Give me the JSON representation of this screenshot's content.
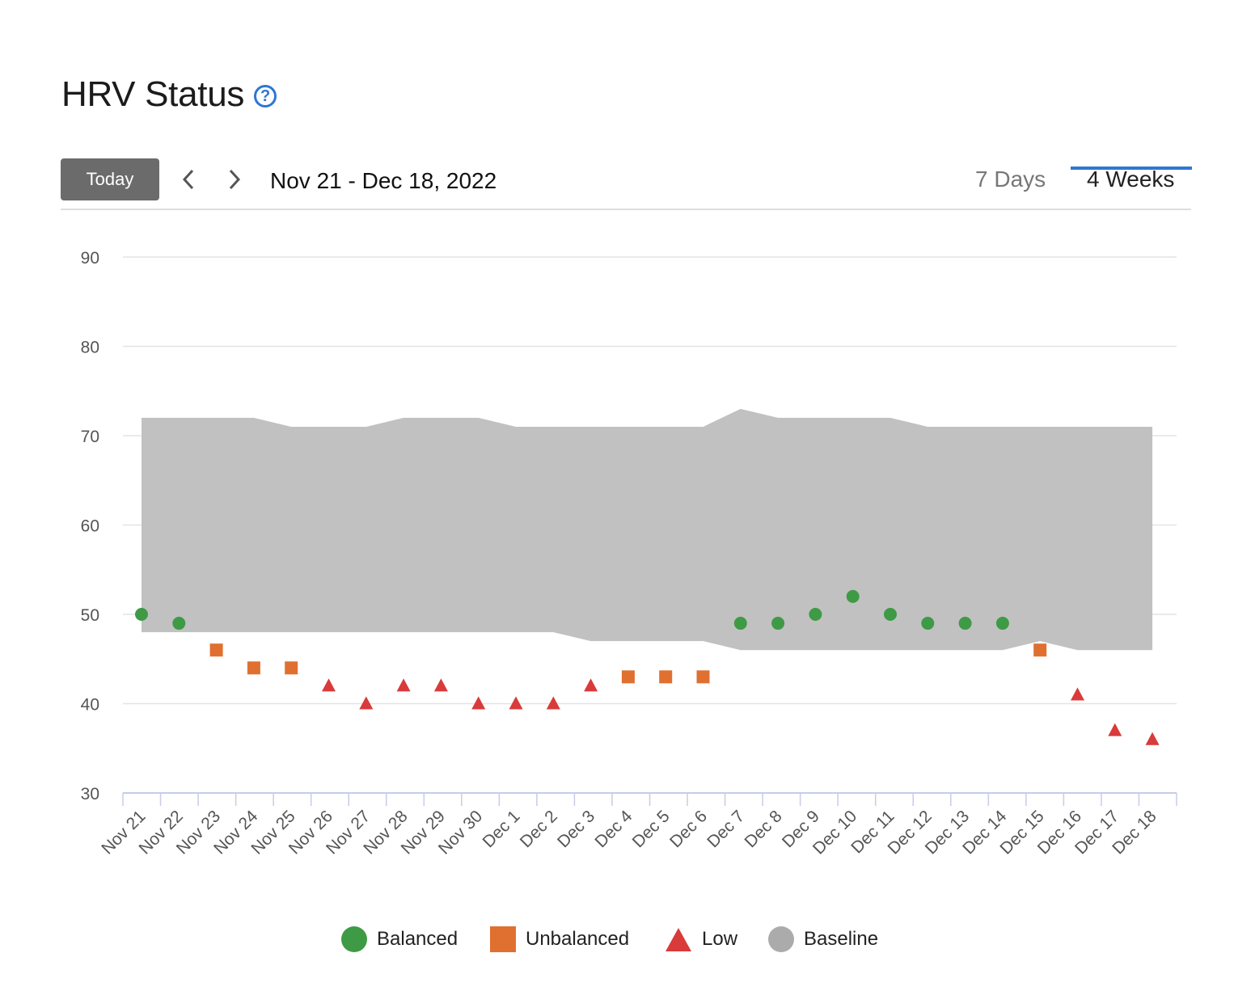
{
  "header": {
    "title": "HRV Status",
    "help_icon": "question-circle-icon"
  },
  "toolbar": {
    "today_label": "Today",
    "prev_icon": "chevron-left-icon",
    "next_icon": "chevron-right-icon",
    "date_range": "Nov 21 - Dec 18, 2022",
    "tabs": [
      {
        "label": "7 Days",
        "active": false
      },
      {
        "label": "4 Weeks",
        "active": true
      }
    ]
  },
  "colors": {
    "balanced": "#3f9a46",
    "unbalanced": "#e07030",
    "low": "#d93a3a",
    "baseline": "#c1c1c1",
    "baseline_legend": "#ababab",
    "accent": "#2f76d2",
    "gridline": "#e4e4e4",
    "axis": "#c5cde8"
  },
  "chart_data": {
    "type": "scatter",
    "categories": [
      "Nov 21",
      "Nov 22",
      "Nov 23",
      "Nov 24",
      "Nov 25",
      "Nov 26",
      "Nov 27",
      "Nov 28",
      "Nov 29",
      "Nov 30",
      "Dec 1",
      "Dec 2",
      "Dec 3",
      "Dec 4",
      "Dec 5",
      "Dec 6",
      "Dec 7",
      "Dec 8",
      "Dec 9",
      "Dec 10",
      "Dec 11",
      "Dec 12",
      "Dec 13",
      "Dec 14",
      "Dec 15",
      "Dec 16",
      "Dec 17",
      "Dec 18"
    ],
    "ylim": [
      30,
      90
    ],
    "yticks": [
      30,
      40,
      50,
      60,
      70,
      80,
      90
    ],
    "grid": true,
    "legend_placement": "bottom-center",
    "values": [
      50,
      49,
      46,
      44,
      44,
      42,
      40,
      42,
      42,
      40,
      40,
      40,
      42,
      43,
      43,
      43,
      49,
      49,
      50,
      52,
      50,
      49,
      49,
      49,
      46,
      41,
      37,
      36
    ],
    "status": [
      "Balanced",
      "Balanced",
      "Unbalanced",
      "Unbalanced",
      "Unbalanced",
      "Low",
      "Low",
      "Low",
      "Low",
      "Low",
      "Low",
      "Low",
      "Low",
      "Unbalanced",
      "Unbalanced",
      "Unbalanced",
      "Balanced",
      "Balanced",
      "Balanced",
      "Balanced",
      "Balanced",
      "Balanced",
      "Balanced",
      "Balanced",
      "Unbalanced",
      "Low",
      "Low",
      "Low"
    ],
    "baseline": {
      "upper": [
        72,
        72,
        72,
        72,
        71,
        71,
        71,
        72,
        72,
        72,
        71,
        71,
        71,
        71,
        71,
        71,
        73,
        72,
        72,
        72,
        72,
        71,
        71,
        71,
        71,
        71,
        71,
        71
      ],
      "lower": [
        48,
        48,
        48,
        48,
        48,
        48,
        48,
        48,
        48,
        48,
        48,
        48,
        47,
        47,
        47,
        47,
        46,
        46,
        46,
        46,
        46,
        46,
        46,
        46,
        47,
        46,
        46,
        46
      ]
    },
    "legend": [
      "Balanced",
      "Unbalanced",
      "Low",
      "Baseline"
    ]
  }
}
